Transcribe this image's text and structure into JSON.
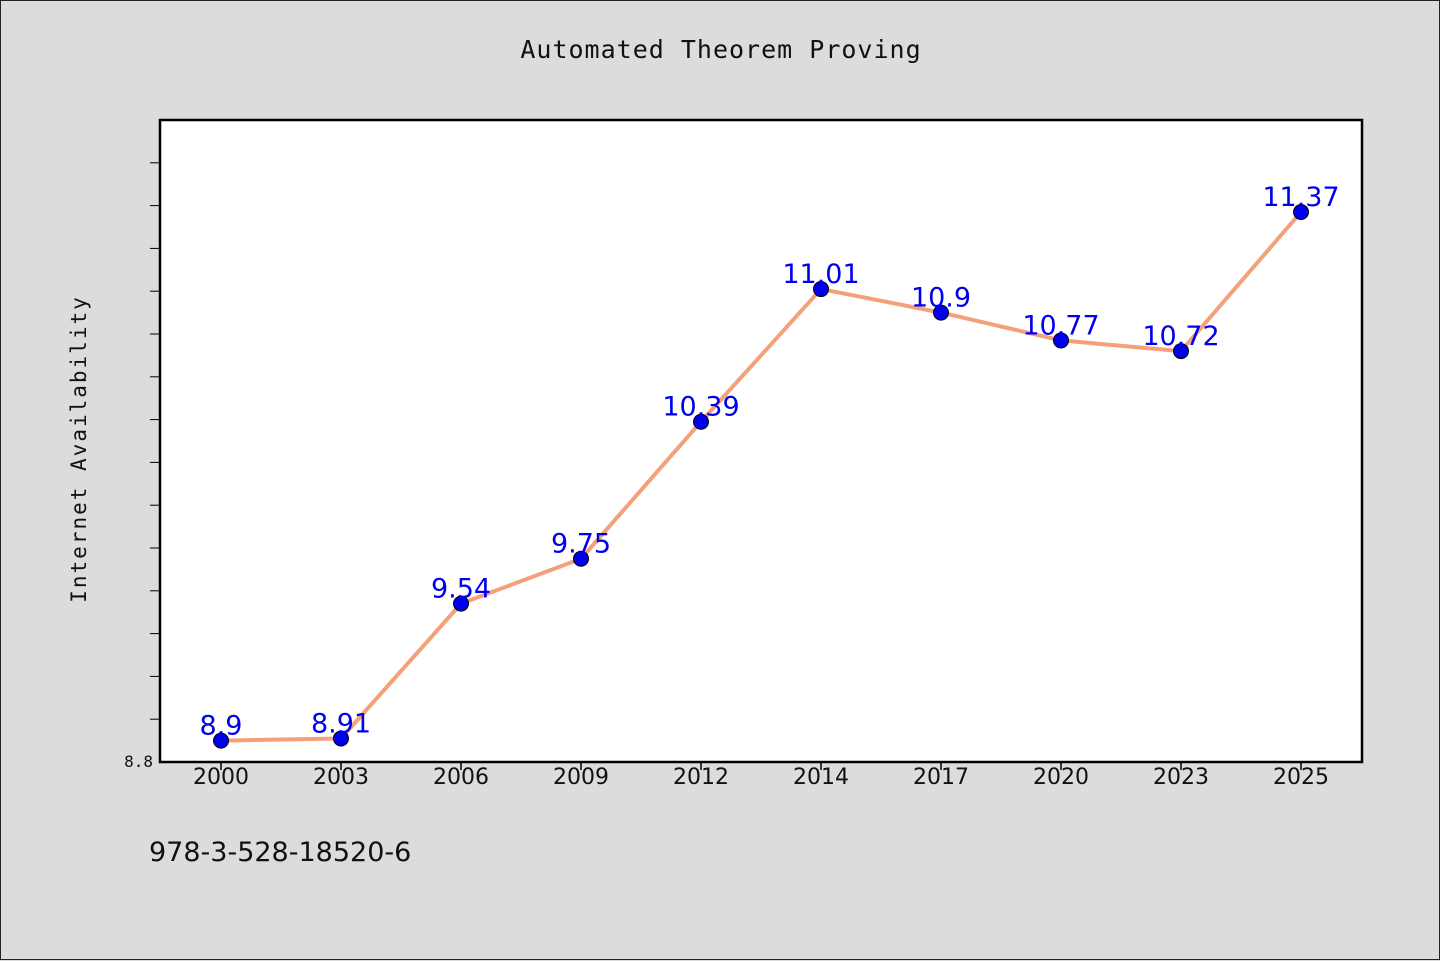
{
  "chart_data": {
    "type": "line",
    "title": "Automated Theorem Proving",
    "ylabel": "Internet Availability",
    "xlabel": "",
    "categories": [
      "2000",
      "2003",
      "2006",
      "2009",
      "2012",
      "2014",
      "2017",
      "2020",
      "2023",
      "2025"
    ],
    "values": [
      8.9,
      8.91,
      9.54,
      9.75,
      10.39,
      11.01,
      10.9,
      10.77,
      10.72,
      11.37
    ],
    "data_labels": [
      "8.9",
      "8.91",
      "9.54",
      "9.75",
      "10.39",
      "11.01",
      "10.9",
      "10.77",
      "10.72",
      "11.37"
    ],
    "ylim": [
      8.8,
      11.8
    ],
    "y_tick_label": "8.8",
    "grid": false,
    "line_color": "#f4a07a",
    "marker_color": "#0000ee",
    "label_color": "#0000ee",
    "footnote": "978-3-528-18520-6"
  }
}
